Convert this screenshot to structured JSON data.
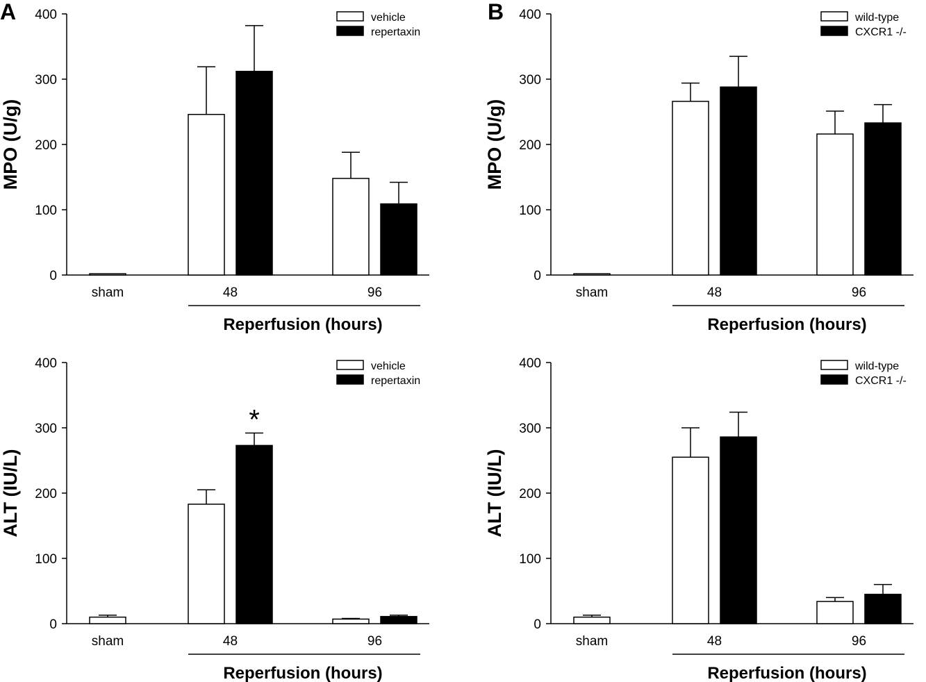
{
  "panel_labels": [
    "A",
    "B"
  ],
  "chart_data": [
    {
      "type": "bar",
      "panel": "A",
      "categories": [
        "sham",
        "48",
        "96"
      ],
      "xlabel": "Reperfusion (hours)",
      "ylabel": "MPO (U/g)",
      "ylim": [
        0,
        400
      ],
      "yticks": [
        0,
        100,
        200,
        300,
        400
      ],
      "legend_position": "top-right",
      "series": [
        {
          "name": "vehicle",
          "fill": "#ffffff",
          "values": [
            2,
            246,
            148
          ],
          "errors": [
            0,
            73,
            40
          ]
        },
        {
          "name": "repertaxin",
          "fill": "#000000",
          "values": [
            null,
            312,
            109
          ],
          "errors": [
            null,
            70,
            33
          ]
        }
      ],
      "annotations": []
    },
    {
      "type": "bar",
      "panel": "B",
      "categories": [
        "sham",
        "48",
        "96"
      ],
      "xlabel": "Reperfusion (hours)",
      "ylabel": "MPO (U/g)",
      "ylim": [
        0,
        400
      ],
      "yticks": [
        0,
        100,
        200,
        300,
        400
      ],
      "legend_position": "top-right",
      "series": [
        {
          "name": "wild-type",
          "fill": "#ffffff",
          "values": [
            2,
            266,
            216
          ],
          "errors": [
            0,
            28,
            35
          ]
        },
        {
          "name": "CXCR1 -/-",
          "fill": "#000000",
          "values": [
            null,
            288,
            233
          ],
          "errors": [
            null,
            47,
            28
          ]
        }
      ],
      "annotations": []
    },
    {
      "type": "bar",
      "panel": "A",
      "categories": [
        "sham",
        "48",
        "96"
      ],
      "xlabel": "Reperfusion (hours)",
      "ylabel": "ALT (IU/L)",
      "ylim": [
        0,
        400
      ],
      "yticks": [
        0,
        100,
        200,
        300,
        400
      ],
      "legend_position": "top-right",
      "series": [
        {
          "name": "vehicle",
          "fill": "#ffffff",
          "values": [
            10,
            183,
            7
          ],
          "errors": [
            3,
            22,
            1
          ]
        },
        {
          "name": "repertaxin",
          "fill": "#000000",
          "values": [
            null,
            273,
            11
          ],
          "errors": [
            null,
            19,
            2
          ]
        }
      ],
      "annotations": [
        {
          "text": "*",
          "category": 1,
          "series": 1
        }
      ]
    },
    {
      "type": "bar",
      "panel": "B",
      "categories": [
        "sham",
        "48",
        "96"
      ],
      "xlabel": "Reperfusion (hours)",
      "ylabel": "ALT (IU/L)",
      "ylim": [
        0,
        400
      ],
      "yticks": [
        0,
        100,
        200,
        300,
        400
      ],
      "legend_position": "top-right",
      "series": [
        {
          "name": "wild-type",
          "fill": "#ffffff",
          "values": [
            10,
            255,
            34
          ],
          "errors": [
            3,
            45,
            6
          ]
        },
        {
          "name": "CXCR1 -/-",
          "fill": "#000000",
          "values": [
            null,
            286,
            45
          ],
          "errors": [
            null,
            38,
            15
          ]
        }
      ],
      "annotations": []
    }
  ]
}
